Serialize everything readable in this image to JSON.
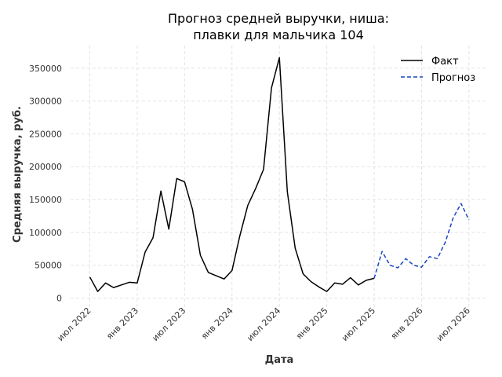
{
  "chart_data": {
    "type": "line",
    "title": [
      "Прогноз средней выручки, ниша:",
      "плавки для мальчика 104"
    ],
    "xlabel": "Дата",
    "ylabel": "Средняя выручка, руб.",
    "ylim": [
      0,
      380000
    ],
    "yticks": [
      0,
      50000,
      100000,
      150000,
      200000,
      250000,
      300000,
      350000
    ],
    "xticks": [
      {
        "date": "2022-07",
        "label": "июл 2022"
      },
      {
        "date": "2023-01",
        "label": "янв 2023"
      },
      {
        "date": "2023-07",
        "label": "июл 2023"
      },
      {
        "date": "2024-01",
        "label": "янв 2024"
      },
      {
        "date": "2024-07",
        "label": "июл 2024"
      },
      {
        "date": "2025-01",
        "label": "янв 2025"
      },
      {
        "date": "2025-07",
        "label": "июл 2025"
      },
      {
        "date": "2026-01",
        "label": "янв 2026"
      },
      {
        "date": "2026-07",
        "label": "июл 2026"
      }
    ],
    "grid": true,
    "legend_position": "top-right",
    "series": [
      {
        "name": "Факт",
        "color": "#000000",
        "style": "solid",
        "points": [
          [
            "2022-07",
            32000
          ],
          [
            "2022-08",
            10000
          ],
          [
            "2022-09",
            23000
          ],
          [
            "2022-10",
            16000
          ],
          [
            "2022-11",
            20000
          ],
          [
            "2022-12",
            24000
          ],
          [
            "2023-01",
            23000
          ],
          [
            "2023-02",
            70000
          ],
          [
            "2023-03",
            92000
          ],
          [
            "2023-04",
            163000
          ],
          [
            "2023-05",
            105000
          ],
          [
            "2023-06",
            182000
          ],
          [
            "2023-07",
            177000
          ],
          [
            "2023-08",
            135000
          ],
          [
            "2023-09",
            65000
          ],
          [
            "2023-10",
            39000
          ],
          [
            "2023-11",
            34000
          ],
          [
            "2023-12",
            29000
          ],
          [
            "2024-01",
            42000
          ],
          [
            "2024-02",
            95000
          ],
          [
            "2024-03",
            141000
          ],
          [
            "2024-04",
            167000
          ],
          [
            "2024-05",
            196000
          ],
          [
            "2024-06",
            320000
          ],
          [
            "2024-07",
            366000
          ],
          [
            "2024-08",
            162000
          ],
          [
            "2024-09",
            76000
          ],
          [
            "2024-10",
            37000
          ],
          [
            "2024-11",
            25000
          ],
          [
            "2024-12",
            17000
          ],
          [
            "2025-01",
            10000
          ],
          [
            "2025-02",
            23000
          ],
          [
            "2025-03",
            21000
          ],
          [
            "2025-04",
            31000
          ],
          [
            "2025-05",
            20000
          ],
          [
            "2025-06",
            27000
          ],
          [
            "2025-07",
            30000
          ]
        ]
      },
      {
        "name": "Прогноз",
        "color": "#1a44c2",
        "style": "dashed",
        "points": [
          [
            "2025-07",
            30000
          ],
          [
            "2025-08",
            71000
          ],
          [
            "2025-09",
            50000
          ],
          [
            "2025-10",
            46000
          ],
          [
            "2025-11",
            60000
          ],
          [
            "2025-12",
            50000
          ],
          [
            "2026-01",
            47000
          ],
          [
            "2026-02",
            63000
          ],
          [
            "2026-03",
            60000
          ],
          [
            "2026-04",
            85000
          ],
          [
            "2026-05",
            122000
          ],
          [
            "2026-06",
            144000
          ],
          [
            "2026-07",
            119000
          ]
        ]
      }
    ]
  }
}
